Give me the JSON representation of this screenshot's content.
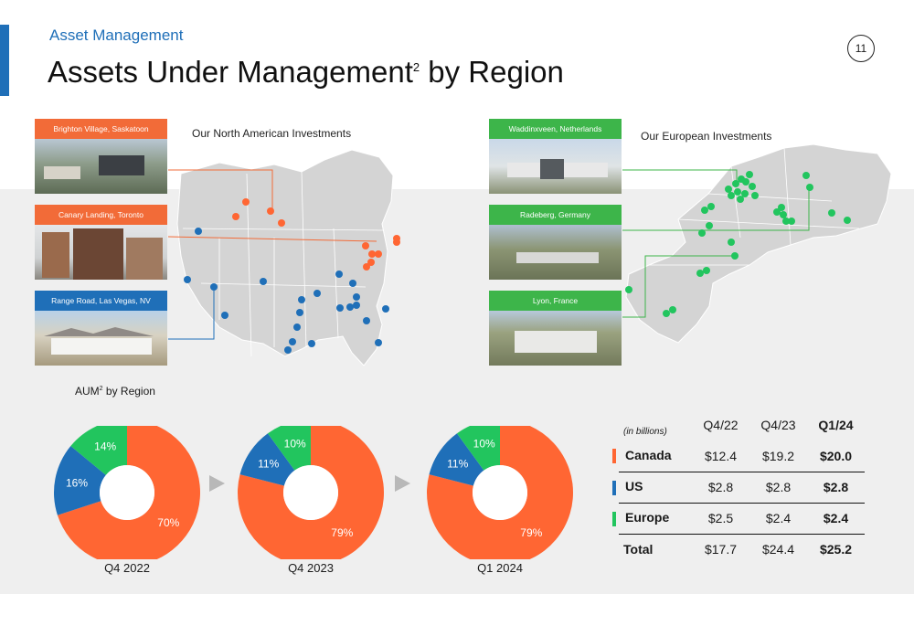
{
  "header": {
    "section": "Asset Management",
    "title": "Assets Under Management",
    "title_sup": "2",
    "title_tail": " by Region",
    "page_number": "11"
  },
  "north_america": {
    "caption": "Our North American Investments",
    "photos": [
      {
        "label": "Brighton Village, Saskatoon",
        "color": "#f26b38"
      },
      {
        "label": "Canary Landing, Toronto",
        "color": "#f26b38"
      },
      {
        "label": "Range Road, Las Vegas, NV",
        "color": "#1f6fb8"
      }
    ]
  },
  "europe": {
    "caption": "Our European Investments",
    "photos": [
      {
        "label": "Waddinxveen, Netherlands",
        "color": "#3db54a"
      },
      {
        "label": "Radeberg, Germany",
        "color": "#3db54a"
      },
      {
        "label": "Lyon, France",
        "color": "#3db54a"
      }
    ]
  },
  "colors": {
    "canada": "#ff6633",
    "us": "#1f6fb8",
    "europe": "#22c55e"
  },
  "aum": {
    "title": "AUM",
    "title_sup": "2",
    "title_tail": " by Region"
  },
  "chart_data": [
    {
      "type": "pie",
      "title": "Q4 2022",
      "categories": [
        "Canada",
        "US",
        "Europe"
      ],
      "values": [
        70,
        16,
        14
      ],
      "labels": [
        "70%",
        "16%",
        "14%"
      ]
    },
    {
      "type": "pie",
      "title": "Q4 2023",
      "categories": [
        "Canada",
        "US",
        "Europe"
      ],
      "values": [
        79,
        11,
        10
      ],
      "labels": [
        "79%",
        "11%",
        "10%"
      ]
    },
    {
      "type": "pie",
      "title": "Q1 2024",
      "categories": [
        "Canada",
        "US",
        "Europe"
      ],
      "values": [
        79,
        11,
        10
      ],
      "labels": [
        "79%",
        "11%",
        "10%"
      ]
    },
    {
      "type": "table",
      "unit_note": "(in billions)",
      "columns": [
        "Q4/22",
        "Q4/23",
        "Q1/24"
      ],
      "rows": [
        {
          "region": "Canada",
          "values": [
            "$12.4",
            "$19.2",
            "$20.0"
          ]
        },
        {
          "region": "US",
          "values": [
            "$2.8",
            "$2.8",
            "$2.8"
          ]
        },
        {
          "region": "Europe",
          "values": [
            "$2.5",
            "$2.4",
            "$2.4"
          ]
        },
        {
          "region": "Total",
          "values": [
            "$17.7",
            "$24.4",
            "$25.2"
          ]
        }
      ]
    }
  ]
}
